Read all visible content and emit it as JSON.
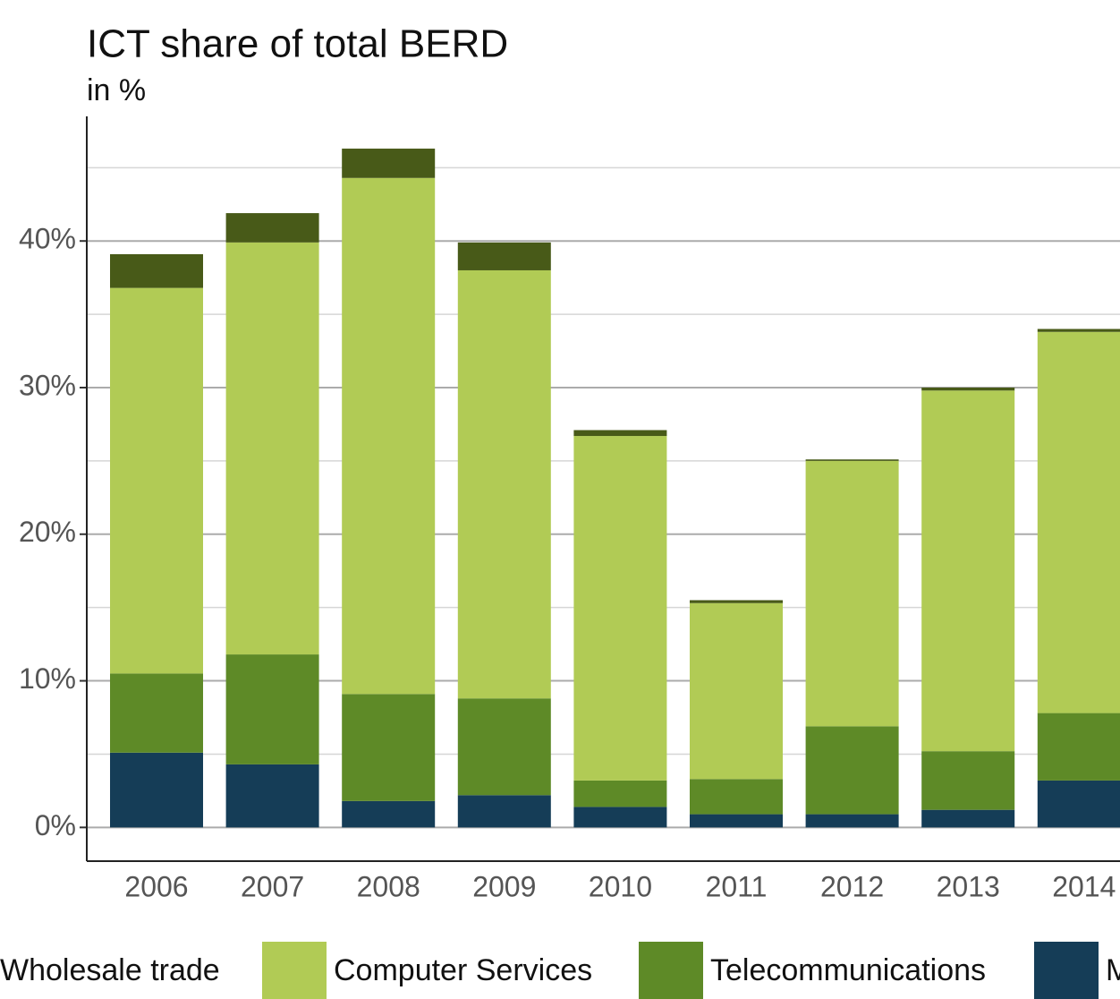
{
  "chart_data": {
    "type": "stacked_bar",
    "title": "ICT share of total BERD",
    "subtitle": "in %",
    "categories": [
      "2006",
      "2007",
      "2008",
      "2009",
      "2010",
      "2011",
      "2012",
      "2013",
      "2014"
    ],
    "series": [
      {
        "name": "Wholesale trade",
        "color": "#485a18",
        "values": [
          2.3,
          2.0,
          2.0,
          1.9,
          0.4,
          0.2,
          0.1,
          0.2,
          0.2
        ]
      },
      {
        "name": "Computer Services",
        "color": "#b1cb55",
        "values": [
          26.3,
          28.1,
          35.2,
          29.2,
          23.5,
          12.0,
          18.1,
          24.6,
          26.0
        ]
      },
      {
        "name": "Telecommunications",
        "color": "#5e8a27",
        "values": [
          5.4,
          7.5,
          7.3,
          6.6,
          1.8,
          2.4,
          6.0,
          4.0,
          4.6
        ]
      },
      {
        "name": "M",
        "color": "#153d57",
        "values": [
          5.1,
          4.3,
          1.8,
          2.2,
          1.4,
          0.9,
          0.9,
          1.2,
          3.2
        ]
      }
    ],
    "ylim": [
      -2.3,
      48.5
    ],
    "yticks": [
      {
        "value": 0,
        "label": "0%"
      },
      {
        "value": 10,
        "label": "10%"
      },
      {
        "value": 20,
        "label": "20%"
      },
      {
        "value": 30,
        "label": "30%"
      },
      {
        "value": 40,
        "label": "40%"
      }
    ],
    "minor_yticks": [
      5,
      15,
      25,
      35,
      45
    ],
    "grid": true,
    "legend": "bottom"
  }
}
